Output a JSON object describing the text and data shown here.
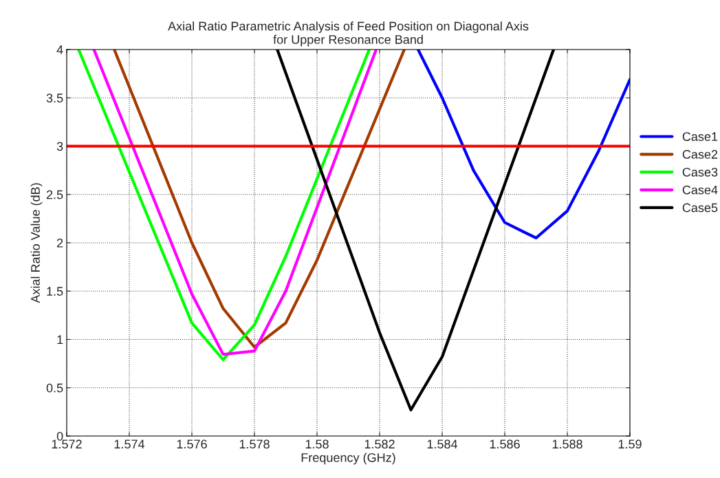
{
  "chart_data": {
    "type": "line",
    "title": "Axial Ratio Parametric Analysis of Feed Position on Diagonal Axis\nfor Upper Resonance Band",
    "xlabel": "Frequency (GHz)",
    "ylabel": "Axial Ratio Value (dB)",
    "xlim": [
      1.572,
      1.59
    ],
    "xticks": [
      1.572,
      1.574,
      1.576,
      1.578,
      1.58,
      1.582,
      1.584,
      1.586,
      1.588,
      1.59
    ],
    "ylim": [
      0,
      4
    ],
    "yticks": [
      0,
      0.5,
      1,
      1.5,
      2,
      2.5,
      3,
      3.5,
      4
    ],
    "grid": true,
    "legend": "right",
    "line_style": "solid",
    "marker": "none",
    "ref_lines": [
      {
        "axis": "y",
        "value": 3,
        "color": "#ff0000",
        "line_style": "solid"
      }
    ],
    "series": [
      {
        "name": "Case1",
        "color": "#0000ff",
        "x": [
          1.58323,
          1.584,
          1.585,
          1.586,
          1.587,
          1.588,
          1.589,
          1.59
        ],
        "values": [
          4,
          3.5,
          2.75,
          2.21,
          2.05,
          2.33,
          2.95,
          3.69
        ]
      },
      {
        "name": "Case2",
        "color": "#a33a00",
        "x": [
          1.57352,
          1.576,
          1.577,
          1.578,
          1.579,
          1.58,
          1.58279
        ],
        "values": [
          4,
          2.0,
          1.32,
          0.92,
          1.17,
          1.82,
          4
        ]
      },
      {
        "name": "Case3",
        "color": "#00ff00",
        "x": [
          1.57238,
          1.576,
          1.577,
          1.578,
          1.579,
          1.58167
        ],
        "values": [
          4,
          1.17,
          0.79,
          1.15,
          1.86,
          4
        ]
      },
      {
        "name": "Case4",
        "color": "#ff00ff",
        "x": [
          1.57287,
          1.576,
          1.577,
          1.578,
          1.579,
          1.58189
        ],
        "values": [
          4,
          1.47,
          0.845,
          0.88,
          1.5,
          4
        ]
      },
      {
        "name": "Case5",
        "color": "#000000",
        "x": [
          1.57873,
          1.582,
          1.583,
          1.584,
          1.58756
        ],
        "values": [
          4,
          1.07,
          0.27,
          0.82,
          4
        ]
      }
    ]
  }
}
